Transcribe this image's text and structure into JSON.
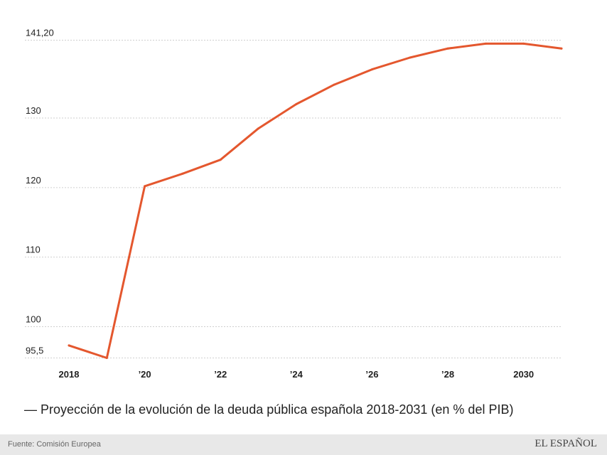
{
  "chart_data": {
    "type": "line",
    "title": "— Proyección de la evolución de la deuda pública española 2018-2031 (en % del PIB)",
    "x": [
      2018,
      2019,
      2020,
      2021,
      2022,
      2023,
      2024,
      2025,
      2026,
      2027,
      2028,
      2029,
      2030,
      2031
    ],
    "x_tick_values": [
      2018,
      2020,
      2022,
      2024,
      2026,
      2028,
      2030
    ],
    "x_tick_labels": [
      "2018",
      "’20",
      "’22",
      "’24",
      "’26",
      "’28",
      "2030"
    ],
    "y_ticks": [
      {
        "value": 141.2,
        "label": "141,20"
      },
      {
        "value": 130,
        "label": "130"
      },
      {
        "value": 120,
        "label": "120"
      },
      {
        "value": 110,
        "label": "110"
      },
      {
        "value": 100,
        "label": "100"
      },
      {
        "value": 95.5,
        "label": "95,5"
      }
    ],
    "series": [
      {
        "name": "Deuda pública (% del PIB)",
        "color": "#e4572e",
        "values": [
          97.3,
          95.5,
          120.2,
          122.0,
          124.0,
          128.5,
          132.0,
          134.8,
          137.0,
          138.7,
          140.0,
          140.7,
          140.7,
          140.0
        ]
      }
    ],
    "ylim": [
      95.5,
      141.2
    ],
    "grid": true
  },
  "footer": {
    "source": "Fuente: Comisión Europea",
    "brand": "EL ESPAÑOL"
  }
}
